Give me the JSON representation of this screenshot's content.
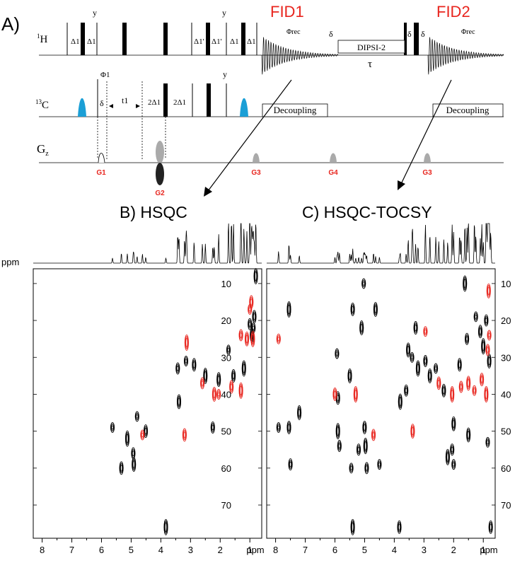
{
  "panel_a": {
    "label": "A)",
    "fid1": "FID1",
    "fid2": "FID2",
    "accent": "#e8251e",
    "cyan": "#1b9fd6",
    "channels": {
      "h": "1H",
      "c": "13C",
      "g": "Gz"
    },
    "h_labels": [
      "Δ1",
      "Δ1",
      "y",
      "Δ1'",
      "Δ1'",
      "Δ1",
      "Δ1",
      "y",
      "Φrec",
      "δ",
      "DIPSI-2",
      "τ",
      "δ",
      "δ",
      "Φrec"
    ],
    "c_labels": [
      "Φ1",
      "δ",
      "t1",
      "2Δ1",
      "2Δ1",
      "y",
      "Decoupling",
      "Decoupling"
    ],
    "gradients": [
      "G1",
      "G2",
      "G3",
      "G4",
      "G3"
    ]
  },
  "panel_b": {
    "title": "B) HSQC",
    "x_ticks": [
      "8",
      "7",
      "6",
      "5",
      "4",
      "3",
      "2",
      "1",
      "ppm"
    ],
    "y_unit": "ppm"
  },
  "panel_c": {
    "title": "C) HSQC-TOCSY",
    "x_ticks": [
      "8",
      "7",
      "6",
      "5",
      "4",
      "3",
      "2",
      "1",
      "ppm"
    ],
    "y_ticks": [
      "10",
      "20",
      "30",
      "40",
      "50",
      "60",
      "70"
    ]
  },
  "chart_data": [
    {
      "type": "scatter",
      "title": "B) HSQC",
      "xlabel": "ppm",
      "ylabel": "ppm",
      "xlim": [
        8.3,
        0.6
      ],
      "ylim": [
        6,
        79
      ],
      "x_ticks": [
        8,
        7,
        6,
        5,
        4,
        3,
        2,
        1
      ],
      "y_ticks": [
        10,
        20,
        30,
        40,
        50,
        60,
        70
      ],
      "series": [
        {
          "color": "#000000",
          "points": [
            [
              5.63,
              49
            ],
            [
              5.33,
              60
            ],
            [
              5.13,
              52
            ],
            [
              4.93,
              56
            ],
            [
              4.91,
              59
            ],
            [
              4.8,
              46
            ],
            [
              4.51,
              50
            ],
            [
              3.83,
              76
            ],
            [
              3.43,
              33
            ],
            [
              3.39,
              42
            ],
            [
              3.15,
              31
            ],
            [
              2.88,
              32
            ],
            [
              2.5,
              35
            ],
            [
              2.25,
              49
            ],
            [
              2.05,
              36
            ],
            [
              1.72,
              28
            ],
            [
              1.55,
              35
            ],
            [
              1.2,
              33
            ],
            [
              1.0,
              21
            ],
            [
              0.93,
              24
            ],
            [
              0.88,
              22
            ],
            [
              0.85,
              19
            ],
            [
              0.8,
              8
            ]
          ]
        },
        {
          "color": "#e8251e",
          "points": [
            [
              4.62,
              51
            ],
            [
              3.2,
              51
            ],
            [
              3.13,
              26
            ],
            [
              2.6,
              37
            ],
            [
              2.2,
              40
            ],
            [
              2.05,
              40
            ],
            [
              1.62,
              38
            ],
            [
              1.3,
              39
            ],
            [
              1.3,
              24
            ],
            [
              1.1,
              25
            ],
            [
              1.0,
              17
            ],
            [
              0.95,
              15
            ],
            [
              0.9,
              25
            ]
          ]
        }
      ]
    },
    {
      "type": "scatter",
      "title": "C) HSQC-TOCSY",
      "xlabel": "",
      "ylabel": "ppm",
      "xlim": [
        8.3,
        0.6
      ],
      "ylim": [
        6,
        79
      ],
      "x_ticks": [
        8,
        7,
        6,
        5,
        4,
        3,
        2,
        1
      ],
      "y_ticks": [
        10,
        20,
        30,
        40,
        50,
        60,
        70
      ],
      "series": [
        {
          "color": "#000000",
          "points": [
            [
              7.9,
              49
            ],
            [
              7.55,
              49
            ],
            [
              7.55,
              17
            ],
            [
              7.5,
              59
            ],
            [
              7.2,
              45
            ],
            [
              5.93,
              29
            ],
            [
              5.9,
              41
            ],
            [
              5.9,
              50
            ],
            [
              5.85,
              54
            ],
            [
              5.5,
              35
            ],
            [
              5.45,
              60
            ],
            [
              5.4,
              17
            ],
            [
              5.4,
              76
            ],
            [
              5.2,
              55
            ],
            [
              5.1,
              22
            ],
            [
              5.03,
              10
            ],
            [
              5.0,
              49
            ],
            [
              4.97,
              54
            ],
            [
              4.93,
              60
            ],
            [
              4.63,
              17
            ],
            [
              4.5,
              59
            ],
            [
              3.83,
              76
            ],
            [
              3.8,
              42
            ],
            [
              3.6,
              39
            ],
            [
              3.53,
              28
            ],
            [
              3.4,
              30
            ],
            [
              3.28,
              22
            ],
            [
              3.2,
              33
            ],
            [
              2.95,
              31
            ],
            [
              2.8,
              35
            ],
            [
              2.6,
              33
            ],
            [
              2.33,
              39
            ],
            [
              2.2,
              57
            ],
            [
              2.05,
              55
            ],
            [
              2.0,
              48
            ],
            [
              2.0,
              59
            ],
            [
              1.8,
              32
            ],
            [
              1.62,
              10
            ],
            [
              1.55,
              25
            ],
            [
              1.5,
              51
            ],
            [
              1.25,
              19
            ],
            [
              1.1,
              23
            ],
            [
              1.0,
              27
            ],
            [
              0.9,
              20
            ],
            [
              0.8,
              31
            ],
            [
              0.85,
              53
            ],
            [
              0.75,
              76
            ]
          ]
        },
        {
          "color": "#e8251e",
          "points": [
            [
              7.9,
              25
            ],
            [
              6.0,
              40
            ],
            [
              5.3,
              40
            ],
            [
              4.7,
              51
            ],
            [
              3.38,
              50
            ],
            [
              2.95,
              23
            ],
            [
              2.5,
              37
            ],
            [
              2.05,
              40
            ],
            [
              1.75,
              38
            ],
            [
              1.5,
              37
            ],
            [
              1.3,
              39
            ],
            [
              1.05,
              36
            ],
            [
              0.9,
              40
            ],
            [
              0.85,
              28
            ],
            [
              0.82,
              12
            ],
            [
              0.8,
              24
            ]
          ]
        }
      ]
    }
  ]
}
